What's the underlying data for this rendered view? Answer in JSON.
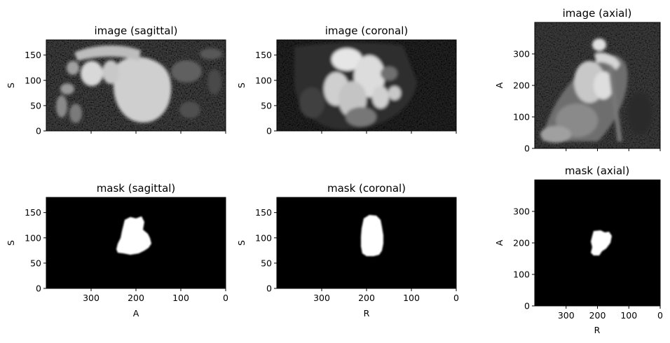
{
  "chart_data": [
    {
      "type": "heatmap",
      "kind": "image",
      "title": "image (sagittal)",
      "xlabel": "",
      "ylabel": "S",
      "xlim": [
        400,
        0
      ],
      "ylim": [
        0,
        180
      ],
      "xticks": [
        300,
        200,
        100,
        0
      ],
      "yticks": [
        0,
        50,
        100,
        150
      ],
      "colormap": "gray"
    },
    {
      "type": "heatmap",
      "kind": "image",
      "title": "image (coronal)",
      "xlabel": "",
      "ylabel": "S",
      "xlim": [
        400,
        0
      ],
      "ylim": [
        0,
        180
      ],
      "xticks": [
        300,
        200,
        100,
        0
      ],
      "yticks": [
        0,
        50,
        100,
        150
      ],
      "colormap": "gray"
    },
    {
      "type": "heatmap",
      "kind": "image",
      "title": "image (axial)",
      "xlabel": "",
      "ylabel": "A",
      "xlim": [
        400,
        0
      ],
      "ylim": [
        0,
        400
      ],
      "xticks": [
        300,
        200,
        100,
        0
      ],
      "yticks": [
        0,
        100,
        200,
        300
      ],
      "colormap": "gray"
    },
    {
      "type": "heatmap",
      "kind": "mask",
      "title": "mask (sagittal)",
      "xlabel": "A",
      "ylabel": "S",
      "xlim": [
        400,
        0
      ],
      "ylim": [
        0,
        180
      ],
      "xticks": [
        300,
        200,
        100,
        0
      ],
      "yticks": [
        0,
        50,
        100,
        150
      ],
      "colormap": "gray",
      "mask_region": {
        "x_range": [
          165,
          240
        ],
        "y_range": [
          68,
          142
        ]
      }
    },
    {
      "type": "heatmap",
      "kind": "mask",
      "title": "mask (coronal)",
      "xlabel": "R",
      "ylabel": "S",
      "xlim": [
        400,
        0
      ],
      "ylim": [
        0,
        180
      ],
      "xticks": [
        300,
        200,
        100,
        0
      ],
      "yticks": [
        0,
        50,
        100,
        150
      ],
      "colormap": "gray",
      "mask_region": {
        "x_range": [
          160,
          215
        ],
        "y_range": [
          65,
          145
        ]
      }
    },
    {
      "type": "heatmap",
      "kind": "mask",
      "title": "mask (axial)",
      "xlabel": "R",
      "ylabel": "A",
      "xlim": [
        400,
        0
      ],
      "ylim": [
        0,
        400
      ],
      "xticks": [
        300,
        200,
        100,
        0
      ],
      "yticks": [
        0,
        100,
        200,
        300
      ],
      "colormap": "gray",
      "mask_region": {
        "x_range": [
          155,
          215
        ],
        "y_range": [
          160,
          240
        ]
      }
    }
  ]
}
